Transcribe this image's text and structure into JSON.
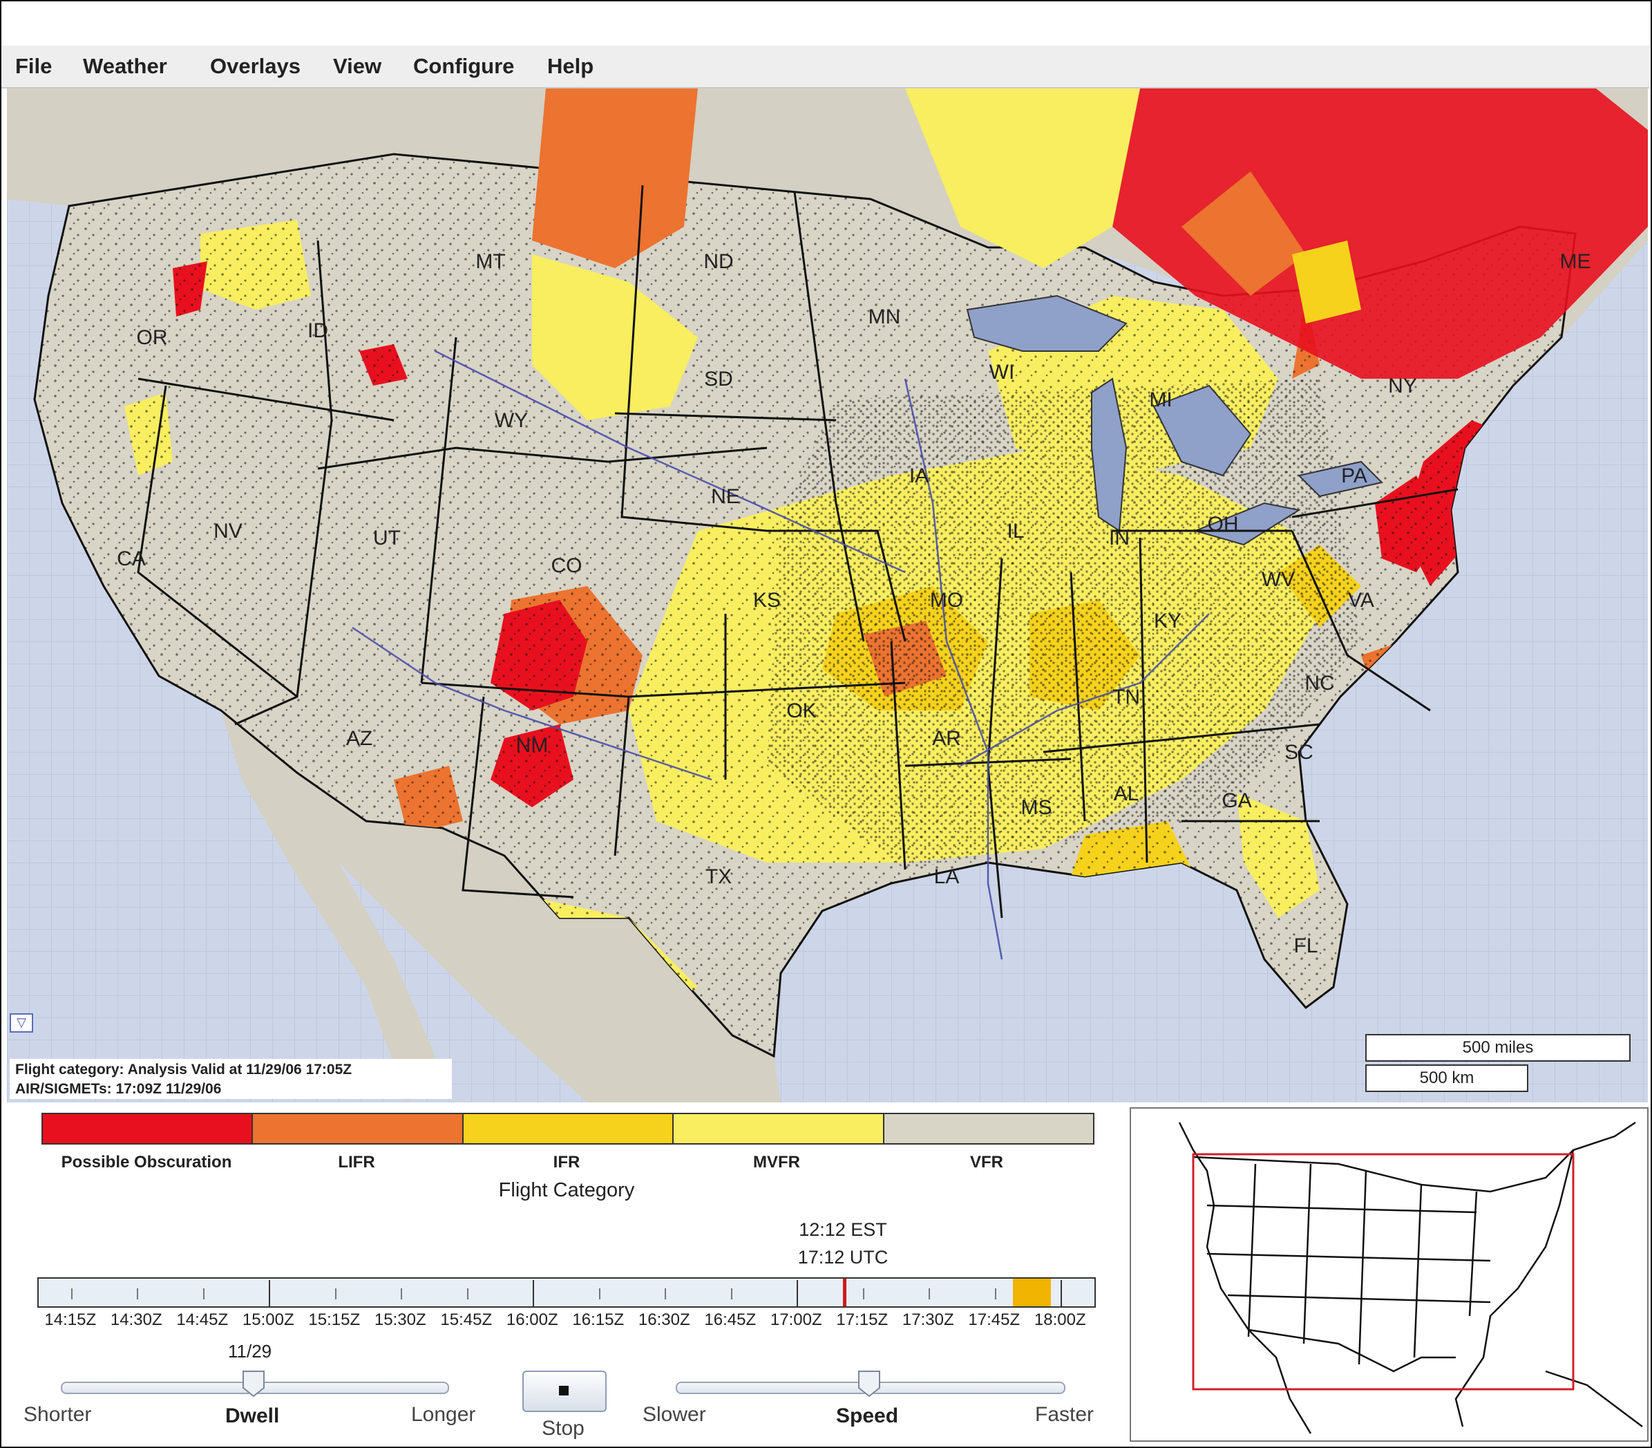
{
  "menu": [
    "File",
    "Weather",
    "Overlays",
    "View",
    "Configure",
    "Help"
  ],
  "map": {
    "state_labels": [
      "OR",
      "ID",
      "MT",
      "ND",
      "MN",
      "WI",
      "MI",
      "NV",
      "CA",
      "UT",
      "WY",
      "SD",
      "NE",
      "IA",
      "IL",
      "IN",
      "OH",
      "PA",
      "NY",
      "ME",
      "CO",
      "KS",
      "MO",
      "KY",
      "WV",
      "VA",
      "AZ",
      "NM",
      "OK",
      "AR",
      "TN",
      "NC",
      "SC",
      "GA",
      "AL",
      "MS",
      "LA",
      "TX",
      "FL"
    ],
    "status_line1": "Flight category: Analysis Valid at 11/29/06 17:05Z",
    "status_line2": "AIR/SIGMETs: 17:09Z 11/29/06",
    "scale_miles": "500 miles",
    "scale_km": "500 km",
    "colors": {
      "water": "#cdd6e8",
      "land": "#d4d0c3",
      "vfr_land": "#d8d4c6",
      "lake": "#8fa0c9"
    }
  },
  "legend": {
    "title": "Flight Category",
    "items": [
      {
        "label": "Possible Obscuration",
        "color": "#e8101e"
      },
      {
        "label": "LIFR",
        "color": "#ec7330"
      },
      {
        "label": "IFR",
        "color": "#f6d21c"
      },
      {
        "label": "MVFR",
        "color": "#f8ee60"
      },
      {
        "label": "VFR",
        "color": "#d8d4c6"
      }
    ]
  },
  "timeline": {
    "current_local": "12:12 EST",
    "current_utc": "17:12 UTC",
    "labels": [
      "14:15Z",
      "14:30Z",
      "14:45Z",
      "15:00Z",
      "15:15Z",
      "15:30Z",
      "15:45Z",
      "16:00Z",
      "16:15Z",
      "16:30Z",
      "16:45Z",
      "17:00Z",
      "17:15Z",
      "17:30Z",
      "17:45Z",
      "18:00Z"
    ],
    "date": "11/29",
    "current_fraction": 0.762,
    "marker_color": "#d01a1a",
    "forecast_color": "#f1b400"
  },
  "controls": {
    "dwell": {
      "label": "Dwell",
      "min_label": "Shorter",
      "max_label": "Longer",
      "value": 0.5
    },
    "stop_label": "Stop",
    "speed": {
      "label": "Speed",
      "min_label": "Slower",
      "max_label": "Faster",
      "value": 0.5
    }
  },
  "overview": {
    "box_color": "#d0202a"
  }
}
